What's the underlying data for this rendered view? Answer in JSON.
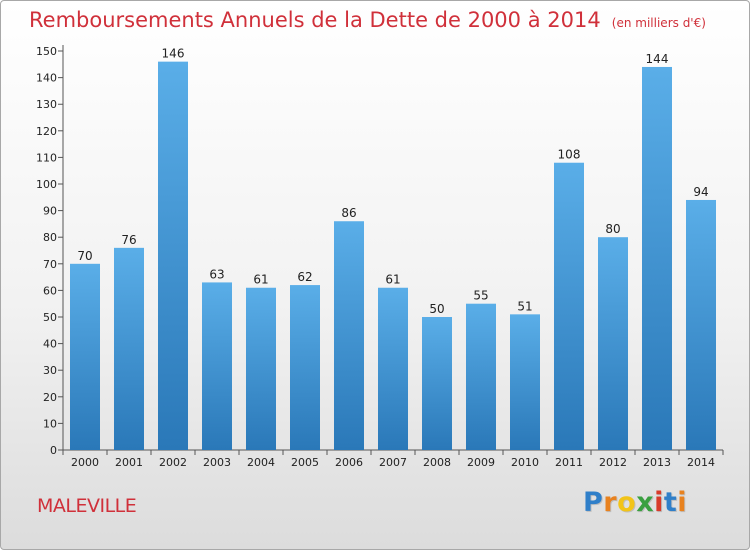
{
  "chart_data": {
    "type": "bar",
    "title": "Remboursements Annuels de la Dette de 2000 à 2014",
    "unit": "(en milliers d'€)",
    "categories": [
      "2000",
      "2001",
      "2002",
      "2003",
      "2004",
      "2005",
      "2006",
      "2007",
      "2008",
      "2009",
      "2010",
      "2011",
      "2012",
      "2013",
      "2014"
    ],
    "values": [
      70,
      76,
      146,
      63,
      61,
      62,
      86,
      61,
      50,
      55,
      51,
      108,
      80,
      144,
      94
    ],
    "value_labels": [
      "70",
      "76",
      "146",
      "63",
      "61",
      "62",
      "86",
      "61",
      "50",
      "55",
      "51",
      "108",
      "80",
      "144",
      "94"
    ],
    "ylim": [
      0,
      150
    ],
    "yticks": [
      0,
      10,
      20,
      30,
      40,
      50,
      60,
      70,
      80,
      90,
      100,
      110,
      120,
      130,
      140,
      150
    ],
    "ytick_labels": [
      "0",
      "10",
      "20",
      "30",
      "40",
      "50",
      "60",
      "70",
      "80",
      "90",
      "100",
      "110",
      "120",
      "130",
      "140",
      "150"
    ],
    "xlabel": "",
    "ylabel": "",
    "grid": false,
    "legend": "none"
  },
  "footer": {
    "place": "MALEVILLE",
    "brand_letters": [
      "P",
      "r",
      "o",
      "x",
      "i",
      "t",
      "i"
    ]
  },
  "colors": {
    "title": "#d0303a",
    "bar_top": "#5aaee8",
    "bar_bottom": "#2a78b8",
    "axis": "#555555",
    "brand": [
      "#2f7fc9",
      "#e8821f",
      "#f2c418",
      "#3aa040",
      "#d83a2a",
      "#2f7fc9",
      "#e8821f"
    ]
  }
}
